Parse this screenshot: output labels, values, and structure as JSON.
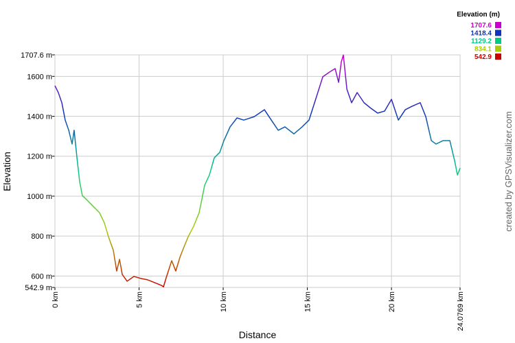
{
  "chart_data": {
    "type": "line",
    "x_label": "Distance",
    "y_label": "Elevation",
    "watermark": "created by GPSVisualizer.com",
    "legend_title": "Elevation (m)",
    "color_scale": [
      {
        "value": 1707.6,
        "label": "1707.6",
        "color": "#cc00cc"
      },
      {
        "value": 1418.4,
        "label": "1418.4",
        "color": "#1133bb"
      },
      {
        "value": 1129.2,
        "label": "1129.2",
        "color": "#00cc88"
      },
      {
        "value": 834.1,
        "label": "834.1",
        "color": "#aacc00"
      },
      {
        "value": 542.9,
        "label": "542.9",
        "color": "#cc0000"
      }
    ],
    "x": [
      0,
      0.2,
      0.41,
      0.61,
      0.82,
      1.02,
      1.14,
      1.31,
      1.47,
      1.63,
      1.84,
      2.24,
      2.65,
      2.94,
      3.18,
      3.47,
      3.67,
      3.84,
      4.0,
      4.29,
      4.69,
      5.1,
      5.51,
      5.92,
      6.33,
      6.45,
      6.61,
      6.94,
      7.18,
      7.43,
      7.67,
      7.92,
      8.24,
      8.57,
      8.9,
      9.18,
      9.47,
      9.8,
      10.04,
      10.41,
      10.82,
      11.22,
      11.84,
      12.45,
      12.86,
      13.27,
      13.67,
      14.2,
      14.69,
      15.1,
      15.43,
      15.92,
      16.33,
      16.65,
      16.86,
      17.02,
      17.14,
      17.35,
      17.63,
      17.96,
      18.37,
      18.78,
      19.18,
      19.59,
      20.0,
      20.41,
      20.82,
      21.22,
      21.71,
      22.04,
      22.37,
      22.65,
      23.06,
      23.47,
      23.76,
      23.92,
      24.08
    ],
    "values": [
      1553,
      1519,
      1468,
      1381,
      1330,
      1261,
      1330,
      1192,
      1072,
      1003,
      986,
      952,
      917,
      866,
      797,
      729,
      625,
      684,
      608,
      574,
      598,
      588,
      581,
      567,
      553,
      546,
      591,
      677,
      625,
      694,
      746,
      797,
      849,
      917,
      1055,
      1106,
      1192,
      1220,
      1278,
      1347,
      1392,
      1381,
      1398,
      1433,
      1381,
      1330,
      1347,
      1312,
      1347,
      1381,
      1468,
      1598,
      1622,
      1639,
      1570,
      1673,
      1707,
      1536,
      1468,
      1519,
      1468,
      1440,
      1416,
      1426,
      1485,
      1381,
      1433,
      1450,
      1468,
      1398,
      1278,
      1261,
      1278,
      1278,
      1175,
      1106,
      1141
    ],
    "xlim": [
      0,
      24.0769
    ],
    "xticks": [
      {
        "value": 0,
        "label": "0 km"
      },
      {
        "value": 5,
        "label": "5 km"
      },
      {
        "value": 10,
        "label": "10 km"
      },
      {
        "value": 15,
        "label": "15 km"
      },
      {
        "value": 20,
        "label": "20 km"
      },
      {
        "value": 24.0769,
        "label": "24.0769 km"
      }
    ],
    "ylim": [
      542.9,
      1707.6
    ],
    "yticks": [
      {
        "value": 542.9,
        "label": "542.9 m"
      },
      {
        "value": 600,
        "label": "600 m"
      },
      {
        "value": 800,
        "label": "800 m"
      },
      {
        "value": 1000,
        "label": "1000 m"
      },
      {
        "value": 1200,
        "label": "1200 m"
      },
      {
        "value": 1400,
        "label": "1400 m"
      },
      {
        "value": 1600,
        "label": "1600 m"
      },
      {
        "value": 1707.6,
        "label": "1707.6 m"
      }
    ],
    "grid": true
  }
}
